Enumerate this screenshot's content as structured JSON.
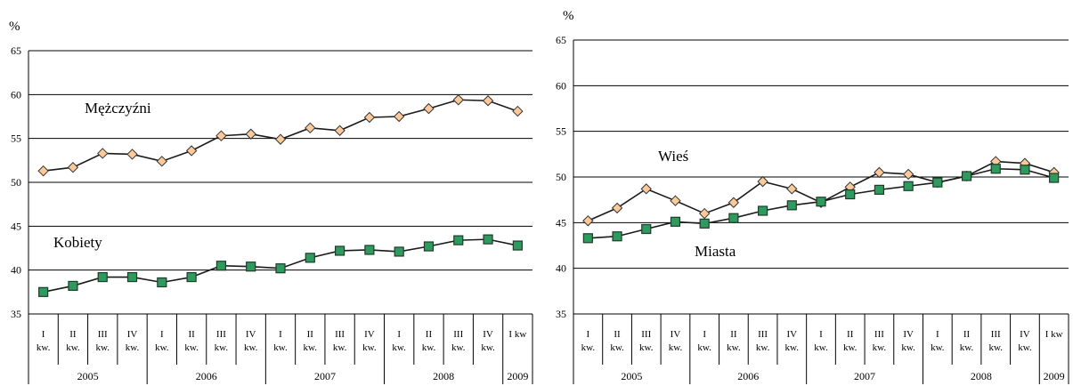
{
  "chart_data": [
    {
      "type": "line",
      "unit_label": "%",
      "ylim": [
        35,
        65
      ],
      "yticks": [
        35,
        40,
        45,
        50,
        55,
        60,
        65
      ],
      "quarters": [
        "I kw.",
        "II kw.",
        "III kw.",
        "IV kw.",
        "I kw.",
        "II kw.",
        "III kw.",
        "IV kw.",
        "I kw.",
        "II kw.",
        "III kw.",
        "IV kw.",
        "I kw.",
        "II kw.",
        "III kw.",
        "IV kw.",
        "I kw"
      ],
      "years": [
        {
          "label": "2005",
          "span": 4
        },
        {
          "label": "2006",
          "span": 4
        },
        {
          "label": "2007",
          "span": 4
        },
        {
          "label": "2008",
          "span": 4
        },
        {
          "label": "2009",
          "span": 1
        }
      ],
      "series": [
        {
          "name": "Mężczyźni",
          "marker": "diamond",
          "color": "#fcc99a",
          "values": [
            51.3,
            51.7,
            53.3,
            53.2,
            52.4,
            53.6,
            55.3,
            55.5,
            54.9,
            56.2,
            55.9,
            57.4,
            57.5,
            58.4,
            59.4,
            59.3,
            58.1
          ]
        },
        {
          "name": "Kobiety",
          "marker": "square",
          "color": "#2f9a5e",
          "values": [
            37.5,
            38.2,
            39.2,
            39.2,
            38.6,
            39.2,
            40.5,
            40.4,
            40.2,
            41.4,
            42.2,
            42.3,
            42.1,
            42.7,
            43.4,
            43.5,
            42.8
          ]
        }
      ],
      "grid": true
    },
    {
      "type": "line",
      "unit_label": "%",
      "ylim": [
        35,
        65
      ],
      "yticks": [
        35,
        40,
        45,
        50,
        55,
        60,
        65
      ],
      "quarters": [
        "I kw.",
        "II kw.",
        "III kw.",
        "IV kw.",
        "I kw.",
        "II kw.",
        "III kw.",
        "IV kw.",
        "I kw.",
        "II kw.",
        "III kw.",
        "IV kw.",
        "I kw.",
        "II kw.",
        "III kw.",
        "IV kw.",
        "I kw"
      ],
      "years": [
        {
          "label": "2005",
          "span": 4
        },
        {
          "label": "2006",
          "span": 4
        },
        {
          "label": "2007",
          "span": 4
        },
        {
          "label": "2008",
          "span": 4
        },
        {
          "label": "2009",
          "span": 1
        }
      ],
      "series": [
        {
          "name": "Wieś",
          "marker": "diamond",
          "color": "#fcc99a",
          "values": [
            45.2,
            46.6,
            48.7,
            47.4,
            46.0,
            47.2,
            49.5,
            48.7,
            47.2,
            48.9,
            50.5,
            50.3,
            49.4,
            50.1,
            51.7,
            51.5,
            50.5
          ]
        },
        {
          "name": "Miasta",
          "marker": "square",
          "color": "#2f9a5e",
          "values": [
            43.3,
            43.5,
            44.3,
            45.1,
            44.9,
            45.5,
            46.3,
            46.9,
            47.3,
            48.1,
            48.6,
            49.0,
            49.4,
            50.1,
            50.9,
            50.8,
            49.9
          ]
        }
      ],
      "grid": true
    }
  ]
}
